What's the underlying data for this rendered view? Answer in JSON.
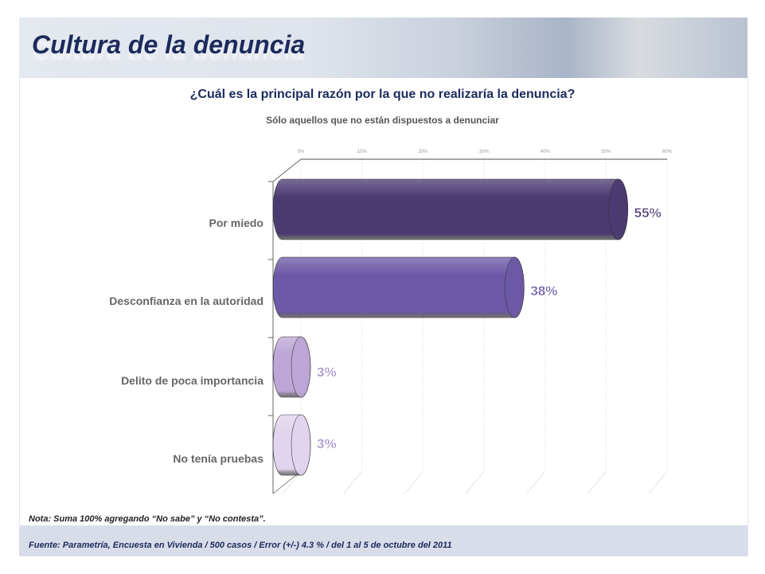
{
  "header": {
    "title": "Cultura de la denuncia"
  },
  "chart_data": {
    "type": "bar",
    "orientation": "horizontal",
    "title": "¿Cuál es la principal razón por la que no realizaría la denuncia?",
    "subtitle": "Sólo aquellos que no están dispuestos a denunciar",
    "categories": [
      "Por miedo",
      "Desconfianza en la autoridad",
      "Delito de poca importancia",
      "No tenía pruebas"
    ],
    "values": [
      55,
      38,
      3,
      3
    ],
    "value_labels": [
      "55%",
      "38%",
      "3%",
      "3%"
    ],
    "xlim": [
      0,
      60
    ],
    "xticks": [
      "0%",
      "10%",
      "20%",
      "30%",
      "40%",
      "50%",
      "60%"
    ],
    "colors": [
      "#4a3a72",
      "#6b58a6",
      "#bca6d6",
      "#e0d4ee"
    ],
    "label_colors": [
      "#4a3a72",
      "#6b58a6",
      "#a58cc8",
      "#a58cc8"
    ],
    "grid": true
  },
  "footer": {
    "note": "Nota: Suma 100% agregando “No sabe” y “No contesta”.",
    "source": "Fuente: Parametría, Encuesta en Vivienda / 500 casos / Error (+/-) 4.3 % / del 1 al 5 de octubre del 2011"
  }
}
